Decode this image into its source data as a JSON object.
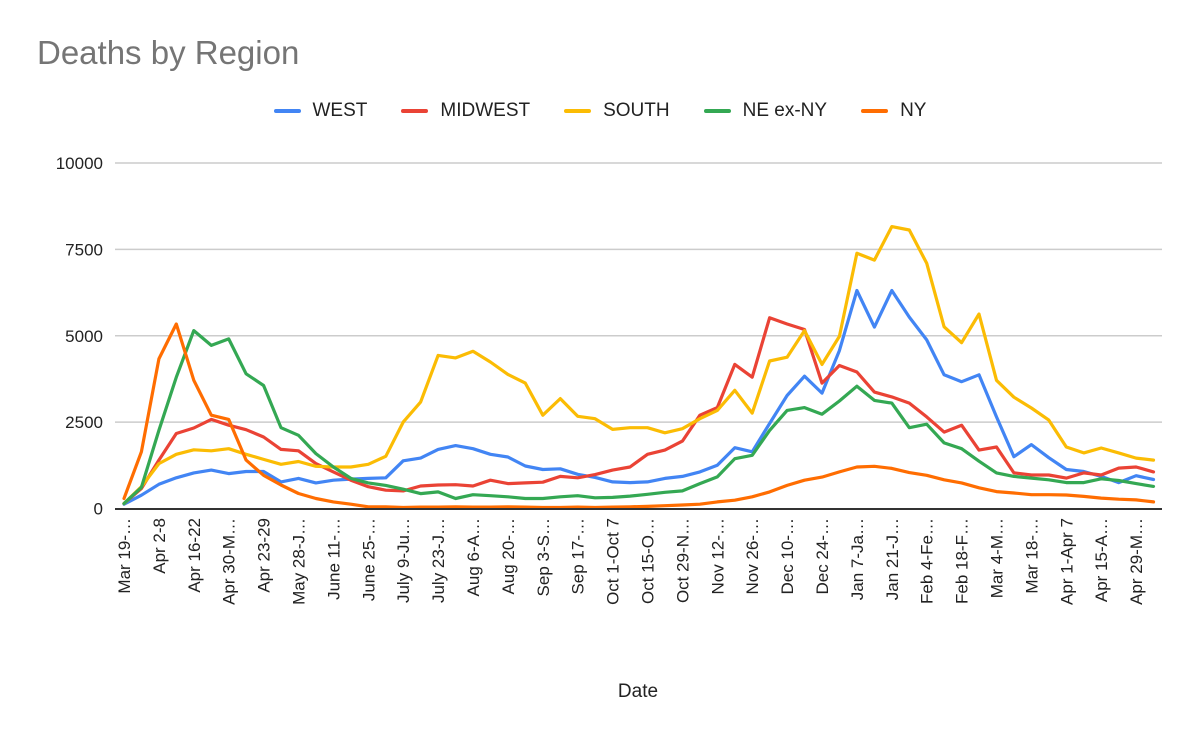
{
  "chart_data": {
    "type": "line",
    "title": "Deaths by Region",
    "xlabel": "Date",
    "ylabel": "",
    "ylim": [
      0,
      10000
    ],
    "yticks": [
      "0",
      "2500",
      "5000",
      "7500",
      "10000"
    ],
    "ytick_values": [
      0,
      2500,
      5000,
      7500,
      10000
    ],
    "grid": true,
    "legend": "top",
    "x_tick_labels": [
      "Mar 19-…",
      "Apr 2-8",
      "Apr 16-22",
      "Apr 30-M…",
      "Apr 23-29",
      "May 28-J…",
      "June 11-…",
      "June 25-…",
      "July 9-Ju…",
      "July 23-J…",
      "Aug 6-A…",
      "Aug 20-…",
      "Sep 3-S…",
      "Sep 17-…",
      "Oct 1-Oct 7",
      "Oct 15-O…",
      "Oct 29-N…",
      "Nov 12-…",
      "Nov 26-…",
      "Dec 10-…",
      "Dec 24-…",
      "Jan 7-Ja…",
      "Jan 21-J…",
      "Feb 4-Fe…",
      "Feb 18-F…",
      "Mar 4-M…",
      "Mar 18-…",
      "Apr 1-Apr 7",
      "Apr 15-A…",
      "Apr 29-M…"
    ],
    "x_tick_every": 2,
    "series": [
      {
        "name": "WEST",
        "color": "#4285F4",
        "values": [
          125,
          385,
          700,
          890,
          1030,
          1110,
          1010,
          1070,
          1070,
          770,
          870,
          740,
          820,
          850,
          870,
          890,
          1380,
          1460,
          1710,
          1820,
          1730,
          1570,
          1490,
          1230,
          1130,
          1150,
          990,
          900,
          770,
          750,
          770,
          870,
          930,
          1060,
          1250,
          1760,
          1640,
          2460,
          3270,
          3830,
          3340,
          4570,
          6310,
          5250,
          6310,
          5540,
          4880,
          3870,
          3670,
          3870,
          2650,
          1500,
          1850,
          1470,
          1130,
          1070,
          930,
          750,
          950,
          840
        ]
      },
      {
        "name": "MIDWEST",
        "color": "#EA4335",
        "values": [
          145,
          580,
          1400,
          2170,
          2330,
          2580,
          2410,
          2280,
          2070,
          1710,
          1670,
          1300,
          1060,
          820,
          630,
          530,
          510,
          650,
          680,
          690,
          650,
          820,
          720,
          740,
          760,
          930,
          890,
          980,
          1110,
          1200,
          1570,
          1690,
          1950,
          2700,
          2920,
          4170,
          3800,
          5520,
          5340,
          5180,
          3630,
          4140,
          3950,
          3370,
          3230,
          3050,
          2650,
          2210,
          2410,
          1690,
          1780,
          1030,
          970,
          970,
          880,
          1030,
          970,
          1170,
          1200,
          1060
        ]
      },
      {
        "name": "SOUTH",
        "color": "#FBBC04",
        "values": [
          145,
          630,
          1300,
          1570,
          1700,
          1670,
          1730,
          1570,
          1420,
          1280,
          1360,
          1220,
          1200,
          1200,
          1280,
          1510,
          2500,
          3080,
          4430,
          4360,
          4550,
          4240,
          3880,
          3630,
          2700,
          3180,
          2670,
          2600,
          2290,
          2340,
          2340,
          2190,
          2310,
          2600,
          2840,
          3420,
          2760,
          4270,
          4380,
          5150,
          4170,
          4980,
          7390,
          7190,
          8160,
          8060,
          7100,
          5260,
          4800,
          5630,
          3710,
          3220,
          2910,
          2560,
          1780,
          1610,
          1750,
          1610,
          1460,
          1400
        ]
      },
      {
        "name": "NE ex-NY",
        "color": "#34A853",
        "values": [
          145,
          610,
          2260,
          3800,
          5150,
          4720,
          4910,
          3900,
          3560,
          2340,
          2120,
          1590,
          1200,
          870,
          740,
          670,
          560,
          430,
          480,
          290,
          400,
          370,
          340,
          290,
          290,
          340,
          370,
          310,
          320,
          360,
          410,
          470,
          510,
          720,
          915,
          1440,
          1540,
          2260,
          2840,
          2920,
          2730,
          3110,
          3540,
          3130,
          3050,
          2340,
          2440,
          1900,
          1730,
          1370,
          1030,
          930,
          880,
          830,
          750,
          750,
          860,
          810,
          720,
          640
        ]
      },
      {
        "name": "NY",
        "color": "#FF6D01",
        "values": [
          290,
          1640,
          4330,
          5340,
          3710,
          2700,
          2580,
          1400,
          960,
          680,
          435,
          290,
          190,
          125,
          50,
          50,
          30,
          40,
          40,
          50,
          40,
          40,
          50,
          40,
          30,
          30,
          40,
          30,
          40,
          50,
          60,
          80,
          100,
          125,
          190,
          240,
          340,
          480,
          670,
          820,
          910,
          1060,
          1200,
          1220,
          1160,
          1040,
          960,
          830,
          740,
          600,
          490,
          450,
          400,
          400,
          390,
          350,
          300,
          270,
          250,
          190
        ]
      }
    ]
  }
}
